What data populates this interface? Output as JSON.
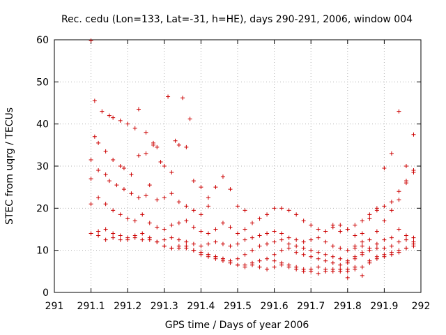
{
  "chart_data": {
    "type": "scatter",
    "title": "Rec. cedu (Lon=133, Lat=-31, h=HE), days 290-291, 2006, window 004",
    "xlabel": "GPS time / Days of year 2006",
    "ylabel": "STEC from uqrg / TECUs",
    "xlim": [
      291,
      292
    ],
    "ylim": [
      0,
      60
    ],
    "xticks": [
      "291",
      "291.1",
      "291.2",
      "291.3",
      "291.4",
      "291.5",
      "291.6",
      "291.7",
      "291.8",
      "291.9",
      "292"
    ],
    "yticks": [
      "0",
      "10",
      "20",
      "30",
      "40",
      "50",
      "60"
    ],
    "grid": true,
    "marker": "plus",
    "color": "#cc0000",
    "series": [
      {
        "x": [
          291.1,
          291.11,
          291.13,
          291.15,
          291.16,
          291.18,
          291.2,
          291.22,
          291.23,
          291.25,
          291.27,
          291.29,
          291.31,
          291.33,
          291.35,
          291.37,
          291.1,
          291.11,
          291.12,
          291.14,
          291.16,
          291.18,
          291.19,
          291.21,
          291.23,
          291.25,
          291.27,
          291.28,
          291.3,
          291.32,
          291.34,
          291.36,
          291.38,
          291.4,
          291.42,
          291.1,
          291.12,
          291.14,
          291.15,
          291.17,
          291.19,
          291.21,
          291.23,
          291.25,
          291.26,
          291.28,
          291.3,
          291.32,
          291.34,
          291.36,
          291.38,
          291.4,
          291.42,
          291.44,
          291.46,
          291.48,
          291.5,
          291.52,
          291.1,
          291.12,
          291.14,
          291.16,
          291.18,
          291.2,
          291.22,
          291.24,
          291.26,
          291.28,
          291.3,
          291.32,
          291.34,
          291.36,
          291.38,
          291.4,
          291.42,
          291.44,
          291.46,
          291.48,
          291.5,
          291.52,
          291.54,
          291.56,
          291.58,
          291.6,
          291.62,
          291.64,
          291.66,
          291.68,
          291.7,
          291.72,
          291.74,
          291.76,
          291.78,
          291.8,
          291.82,
          291.84,
          291.1,
          291.12,
          291.14,
          291.16,
          291.18,
          291.2,
          291.22,
          291.24,
          291.26,
          291.28,
          291.3,
          291.32,
          291.34,
          291.36,
          291.38,
          291.4,
          291.42,
          291.44,
          291.46,
          291.48,
          291.5,
          291.52,
          291.54,
          291.56,
          291.58,
          291.6,
          291.62,
          291.64,
          291.66,
          291.68,
          291.7,
          291.72,
          291.74,
          291.76,
          291.78,
          291.8,
          291.82,
          291.84,
          291.86,
          291.88,
          291.9,
          291.92,
          291.94,
          291.96,
          291.98,
          291.3,
          291.32,
          291.34,
          291.36,
          291.38,
          291.4,
          291.42,
          291.44,
          291.46,
          291.48,
          291.5,
          291.52,
          291.54,
          291.56,
          291.58,
          291.6,
          291.62,
          291.64,
          291.66,
          291.68,
          291.7,
          291.72,
          291.74,
          291.76,
          291.78,
          291.8,
          291.82,
          291.84,
          291.86,
          291.88,
          291.9,
          291.92,
          291.94,
          291.96,
          291.98,
          291.4,
          291.42,
          291.44,
          291.46,
          291.48,
          291.5,
          291.52,
          291.54,
          291.56,
          291.58,
          291.6,
          291.62,
          291.64,
          291.66,
          291.68,
          291.7,
          291.72,
          291.74,
          291.76,
          291.78,
          291.8,
          291.82,
          291.84,
          291.86,
          291.88,
          291.9,
          291.92,
          291.94,
          291.96,
          291.98,
          291.5,
          291.52,
          291.54,
          291.56,
          291.58,
          291.6,
          291.62,
          291.64,
          291.66,
          291.68,
          291.7,
          291.72,
          291.74,
          291.76,
          291.78,
          291.8,
          291.82,
          291.84,
          291.86,
          291.88,
          291.9,
          291.92,
          291.94,
          291.96,
          291.98,
          291.6,
          291.62,
          291.64,
          291.66,
          291.68,
          291.7,
          291.72,
          291.74,
          291.76,
          291.78,
          291.8,
          291.82,
          291.84,
          291.86,
          291.88,
          291.9,
          291.92,
          291.94,
          291.96,
          291.98,
          291.12,
          291.14,
          291.16,
          291.18,
          291.2,
          291.22,
          291.24,
          291.26,
          291.28,
          291.3,
          291.32,
          291.34,
          291.36,
          291.38,
          291.4,
          291.42,
          291.44,
          291.46,
          291.76,
          291.78,
          291.8,
          291.82,
          291.84,
          291.86,
          291.88,
          291.9,
          291.92,
          291.94,
          291.96,
          291.98,
          291.8,
          291.82,
          291.84,
          291.86,
          291.88,
          291.9,
          291.92,
          291.94,
          291.96,
          291.98
        ],
        "y": [
          59.8,
          45.5,
          43.0,
          42.0,
          41.5,
          40.8,
          40.0,
          39.0,
          43.5,
          38.0,
          35.0,
          31.0,
          46.5,
          36.0,
          46.2,
          41.2,
          31.5,
          37.0,
          35.5,
          33.5,
          31.5,
          30.0,
          29.5,
          28.0,
          32.5,
          33.0,
          35.5,
          34.5,
          30.0,
          28.5,
          35.0,
          34.5,
          26.5,
          25.0,
          22.5,
          27.0,
          29.0,
          28.0,
          26.5,
          25.5,
          24.5,
          23.5,
          22.5,
          23.0,
          25.5,
          22.0,
          22.5,
          23.5,
          21.5,
          20.5,
          19.5,
          18.5,
          20.5,
          25.0,
          27.5,
          24.5,
          20.5,
          19.5,
          21.0,
          22.5,
          21.0,
          19.5,
          18.5,
          17.5,
          17.0,
          18.5,
          16.5,
          15.5,
          15.0,
          16.0,
          16.5,
          17.0,
          15.5,
          14.5,
          14.0,
          15.0,
          16.5,
          15.5,
          14.0,
          15.0,
          16.5,
          17.5,
          18.5,
          20.0,
          20.0,
          19.5,
          18.5,
          17.0,
          16.0,
          15.0,
          14.5,
          15.5,
          16.0,
          15.0,
          13.5,
          12.0,
          14.0,
          14.5,
          15.0,
          14.0,
          13.5,
          13.0,
          13.5,
          14.0,
          12.5,
          12.0,
          12.5,
          13.0,
          12.5,
          12.0,
          11.5,
          11.0,
          11.5,
          12.0,
          11.5,
          11.0,
          11.5,
          12.5,
          13.0,
          13.5,
          14.0,
          14.5,
          14.0,
          13.0,
          12.5,
          12.0,
          12.5,
          13.0,
          12.0,
          11.0,
          10.5,
          10.0,
          10.5,
          11.0,
          12.5,
          14.5,
          17.0,
          19.5,
          22.0,
          26.5,
          28.5,
          11.0,
          10.5,
          10.5,
          11.0,
          10.0,
          9.5,
          9.0,
          8.5,
          8.0,
          7.5,
          8.0,
          9.0,
          10.0,
          11.0,
          11.5,
          12.0,
          12.5,
          11.5,
          11.0,
          10.5,
          10.0,
          9.5,
          9.0,
          8.5,
          8.0,
          7.5,
          8.5,
          9.5,
          10.5,
          11.5,
          12.5,
          13.0,
          15.0,
          13.5,
          12.0,
          9.0,
          8.5,
          8.0,
          7.5,
          7.0,
          6.5,
          6.5,
          7.0,
          7.5,
          8.0,
          9.0,
          10.0,
          10.5,
          9.5,
          9.0,
          8.5,
          8.0,
          7.5,
          7.0,
          6.5,
          7.0,
          8.0,
          9.0,
          10.0,
          10.5,
          10.5,
          11.0,
          12.0,
          12.5,
          11.0,
          6.5,
          6.0,
          6.5,
          6.0,
          5.5,
          6.0,
          6.5,
          6.0,
          5.5,
          5.0,
          5.5,
          6.0,
          5.5,
          5.0,
          5.5,
          5.0,
          5.5,
          6.0,
          7.5,
          8.5,
          9.0,
          9.5,
          10.0,
          10.5,
          11.5,
          7.5,
          7.0,
          6.5,
          6.0,
          5.5,
          5.0,
          4.5,
          5.0,
          5.5,
          5.0,
          5.5,
          6.0,
          4.0,
          7.0,
          8.0,
          8.5,
          9.0,
          9.5,
          10.5,
          13.0,
          13.5,
          12.5,
          13.0,
          12.5,
          12.5,
          13.0,
          12.5,
          13.0,
          12.0,
          11.0,
          10.5,
          11.0,
          10.5,
          10.0,
          9.5,
          9.0,
          8.5,
          8.0,
          16.0,
          14.5,
          15.0,
          16.0,
          17.0,
          18.5,
          19.5,
          20.5,
          21.5,
          24.0,
          26.0,
          29.0,
          3.5,
          11.0,
          14.0,
          17.5,
          20.0,
          29.5,
          33.0,
          43.0,
          30.0,
          37.5
        ]
      }
    ]
  }
}
